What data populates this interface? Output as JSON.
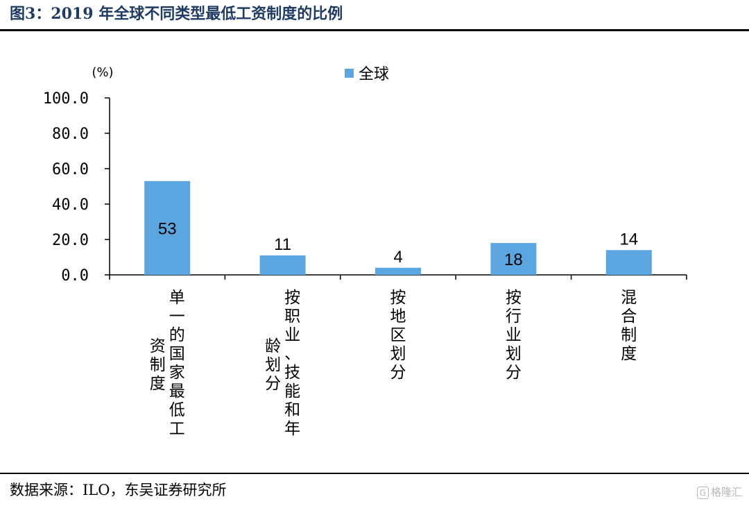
{
  "header": {
    "title": "图3：2019 年全球不同类型最低工资制度的比例"
  },
  "footer": {
    "source": "数据来源：ILO，东吴证券研究所",
    "watermark": "格隆汇",
    "watermark_mark": "G"
  },
  "colors": {
    "bar": "#5ba6e0",
    "axis": "#000000"
  },
  "chart_data": {
    "type": "bar",
    "title": "",
    "ylabel": "(%)",
    "xlabel": "",
    "ylim": [
      0,
      100
    ],
    "yticks": [
      0,
      20,
      40,
      60,
      80,
      100
    ],
    "ytick_labels": [
      "0.0",
      "20.0",
      "40.0",
      "60.0",
      "80.0",
      "100.0"
    ],
    "legend": {
      "entries": [
        "全球"
      ],
      "position": "top-center"
    },
    "categories": [
      [
        "单一的国家最低工",
        "资制度"
      ],
      [
        "按职业、技能和年",
        "龄划分"
      ],
      [
        "按地区划分"
      ],
      [
        "按行业划分"
      ],
      [
        "混合制度"
      ]
    ],
    "series": [
      {
        "name": "全球",
        "values": [
          53,
          11,
          4,
          18,
          14
        ],
        "labels": [
          "53",
          "11",
          "4",
          "18",
          "14"
        ]
      }
    ]
  }
}
